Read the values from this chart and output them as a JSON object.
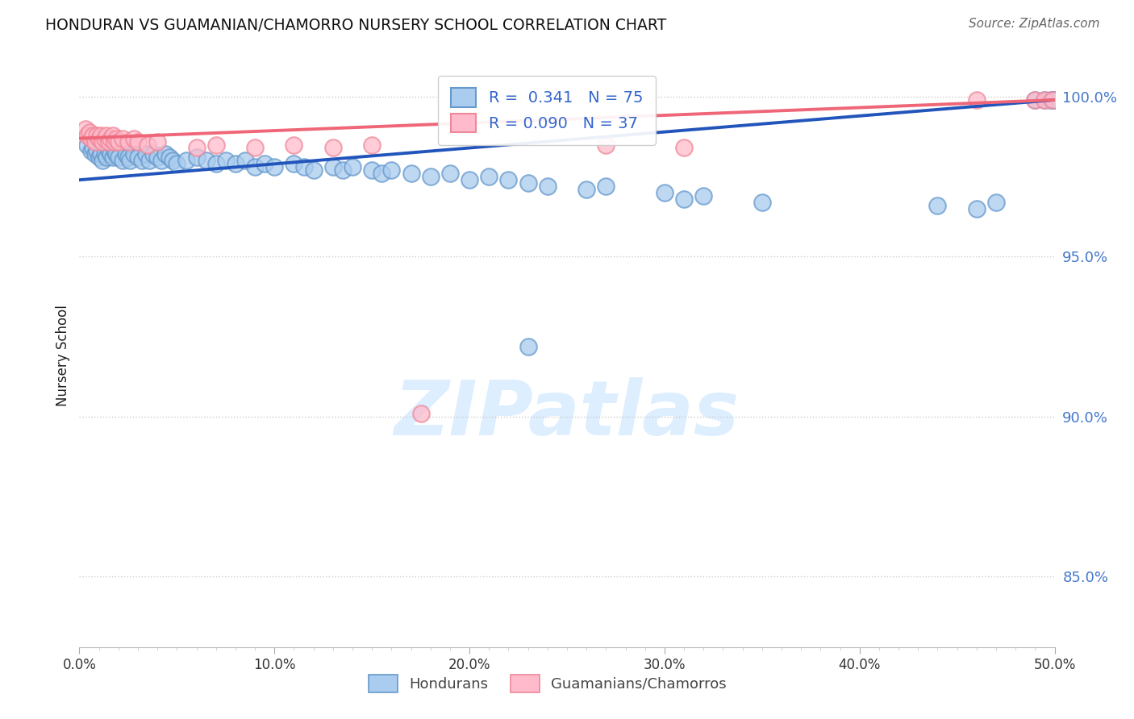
{
  "title": "HONDURAN VS GUAMANIAN/CHAMORRO NURSERY SCHOOL CORRELATION CHART",
  "source_text": "Source: ZipAtlas.com",
  "ylabel": "Nursery School",
  "xlim": [
    0.0,
    0.5
  ],
  "ylim": [
    0.828,
    1.01
  ],
  "ytick_labels": [
    "85.0%",
    "90.0%",
    "95.0%",
    "100.0%"
  ],
  "ytick_values": [
    0.85,
    0.9,
    0.95,
    1.0
  ],
  "xtick_labels": [
    "0.0%",
    "10.0%",
    "20.0%",
    "30.0%",
    "40.0%",
    "50.0%"
  ],
  "xtick_values": [
    0.0,
    0.1,
    0.2,
    0.3,
    0.4,
    0.5
  ],
  "honduran_R": 0.341,
  "honduran_N": 75,
  "guamanian_R": 0.09,
  "guamanian_N": 37,
  "blue_face": "#AACCEE",
  "blue_edge": "#6699CC",
  "pink_face": "#FFBBCC",
  "pink_edge": "#EE8899",
  "blue_line": "#2255BB",
  "pink_line": "#EE6677",
  "legend_text_color": "#3366CC",
  "ytick_color": "#4477CC",
  "grid_color": "#CCCCCC",
  "watermark_color": "#DDEEFF",
  "blue_x": [
    0.004,
    0.006,
    0.007,
    0.008,
    0.009,
    0.01,
    0.011,
    0.012,
    0.013,
    0.014,
    0.015,
    0.016,
    0.017,
    0.018,
    0.019,
    0.02,
    0.022,
    0.024,
    0.025,
    0.026,
    0.028,
    0.03,
    0.032,
    0.034,
    0.036,
    0.038,
    0.04,
    0.042,
    0.044,
    0.046,
    0.048,
    0.05,
    0.055,
    0.06,
    0.065,
    0.07,
    0.075,
    0.08,
    0.085,
    0.09,
    0.095,
    0.1,
    0.11,
    0.115,
    0.12,
    0.13,
    0.135,
    0.14,
    0.15,
    0.155,
    0.16,
    0.17,
    0.18,
    0.19,
    0.2,
    0.21,
    0.22,
    0.23,
    0.24,
    0.26,
    0.27,
    0.3,
    0.32,
    0.23,
    0.31,
    0.35,
    0.44,
    0.46,
    0.47,
    0.49,
    0.495,
    0.498,
    0.499,
    0.5,
    0.5
  ],
  "blue_y": [
    0.985,
    0.983,
    0.984,
    0.982,
    0.983,
    0.981,
    0.982,
    0.98,
    0.982,
    0.981,
    0.983,
    0.982,
    0.981,
    0.983,
    0.982,
    0.981,
    0.98,
    0.982,
    0.981,
    0.98,
    0.982,
    0.981,
    0.98,
    0.982,
    0.98,
    0.982,
    0.981,
    0.98,
    0.982,
    0.981,
    0.98,
    0.979,
    0.98,
    0.981,
    0.98,
    0.979,
    0.98,
    0.979,
    0.98,
    0.978,
    0.979,
    0.978,
    0.979,
    0.978,
    0.977,
    0.978,
    0.977,
    0.978,
    0.977,
    0.976,
    0.977,
    0.976,
    0.975,
    0.976,
    0.974,
    0.975,
    0.974,
    0.973,
    0.972,
    0.971,
    0.972,
    0.97,
    0.969,
    0.922,
    0.968,
    0.967,
    0.966,
    0.965,
    0.967,
    0.999,
    0.999,
    0.999,
    0.999,
    0.999,
    0.999
  ],
  "pink_x": [
    0.003,
    0.004,
    0.005,
    0.006,
    0.007,
    0.008,
    0.009,
    0.01,
    0.011,
    0.012,
    0.013,
    0.014,
    0.015,
    0.016,
    0.017,
    0.018,
    0.019,
    0.02,
    0.022,
    0.025,
    0.028,
    0.03,
    0.035,
    0.04,
    0.06,
    0.07,
    0.09,
    0.11,
    0.13,
    0.15,
    0.175,
    0.27,
    0.31,
    0.46,
    0.49,
    0.495,
    0.499
  ],
  "pink_y": [
    0.99,
    0.988,
    0.989,
    0.987,
    0.988,
    0.986,
    0.988,
    0.987,
    0.988,
    0.986,
    0.987,
    0.988,
    0.986,
    0.987,
    0.988,
    0.986,
    0.987,
    0.986,
    0.987,
    0.986,
    0.987,
    0.986,
    0.985,
    0.986,
    0.984,
    0.985,
    0.984,
    0.985,
    0.984,
    0.985,
    0.901,
    0.985,
    0.984,
    0.999,
    0.999,
    0.999,
    0.999
  ]
}
